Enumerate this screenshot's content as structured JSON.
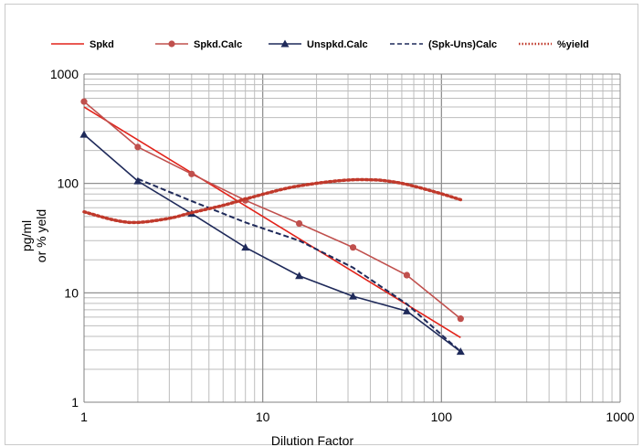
{
  "chart_data": {
    "type": "line",
    "title": "",
    "xlabel": "Dilution Factor",
    "ylabel_lines": [
      "pg/ml",
      "or % yeld"
    ],
    "xscale": "log",
    "yscale": "log",
    "xlim": [
      1,
      1000
    ],
    "ylim": [
      1,
      1000
    ],
    "x_ticks": [
      1,
      10,
      100,
      1000
    ],
    "x_tick_labels": [
      "1",
      "10",
      "100",
      "1000"
    ],
    "y_ticks": [
      1,
      10,
      100,
      1000
    ],
    "y_tick_labels": [
      "1",
      "10",
      "100",
      "1000"
    ],
    "grid": true,
    "legend_position": "top",
    "series": [
      {
        "name": "Spkd",
        "style": "solid",
        "marker": "none",
        "color": "#e2231a",
        "x": [
          1,
          128
        ],
        "y": [
          500,
          3.9
        ]
      },
      {
        "name": "Spkd.Calc",
        "style": "solid",
        "marker": "circle",
        "color": "#c0504d",
        "x": [
          1,
          2,
          4,
          8,
          16,
          32,
          64,
          128
        ],
        "y": [
          560,
          215,
          122,
          70,
          43,
          26,
          14.5,
          5.8
        ]
      },
      {
        "name": "Unspkd.Calc",
        "style": "solid",
        "marker": "triangle",
        "color": "#1f2a5a",
        "x": [
          1,
          2,
          4,
          8,
          16,
          32,
          64,
          128
        ],
        "y": [
          280,
          105,
          53,
          26,
          14.3,
          9.3,
          6.8,
          2.9
        ]
      },
      {
        "name": "(Spk-Uns)Calc",
        "style": "dashed",
        "marker": "none",
        "color": "#1f2a5a",
        "x": [
          2,
          4,
          8,
          16,
          32,
          64,
          128
        ],
        "y": [
          110,
          69,
          44,
          30,
          17,
          7.9,
          2.9
        ]
      },
      {
        "name": "%yield",
        "style": "dotted",
        "marker": "none",
        "color": "#c0392b",
        "x": [
          1,
          1.5,
          2,
          3,
          4,
          6,
          8,
          12,
          16,
          24,
          32,
          40,
          48,
          64,
          96,
          128
        ],
        "y": [
          55,
          46,
          44,
          48,
          54,
          63,
          72,
          86,
          95,
          104,
          108,
          108,
          106,
          98,
          82,
          71
        ]
      }
    ]
  }
}
